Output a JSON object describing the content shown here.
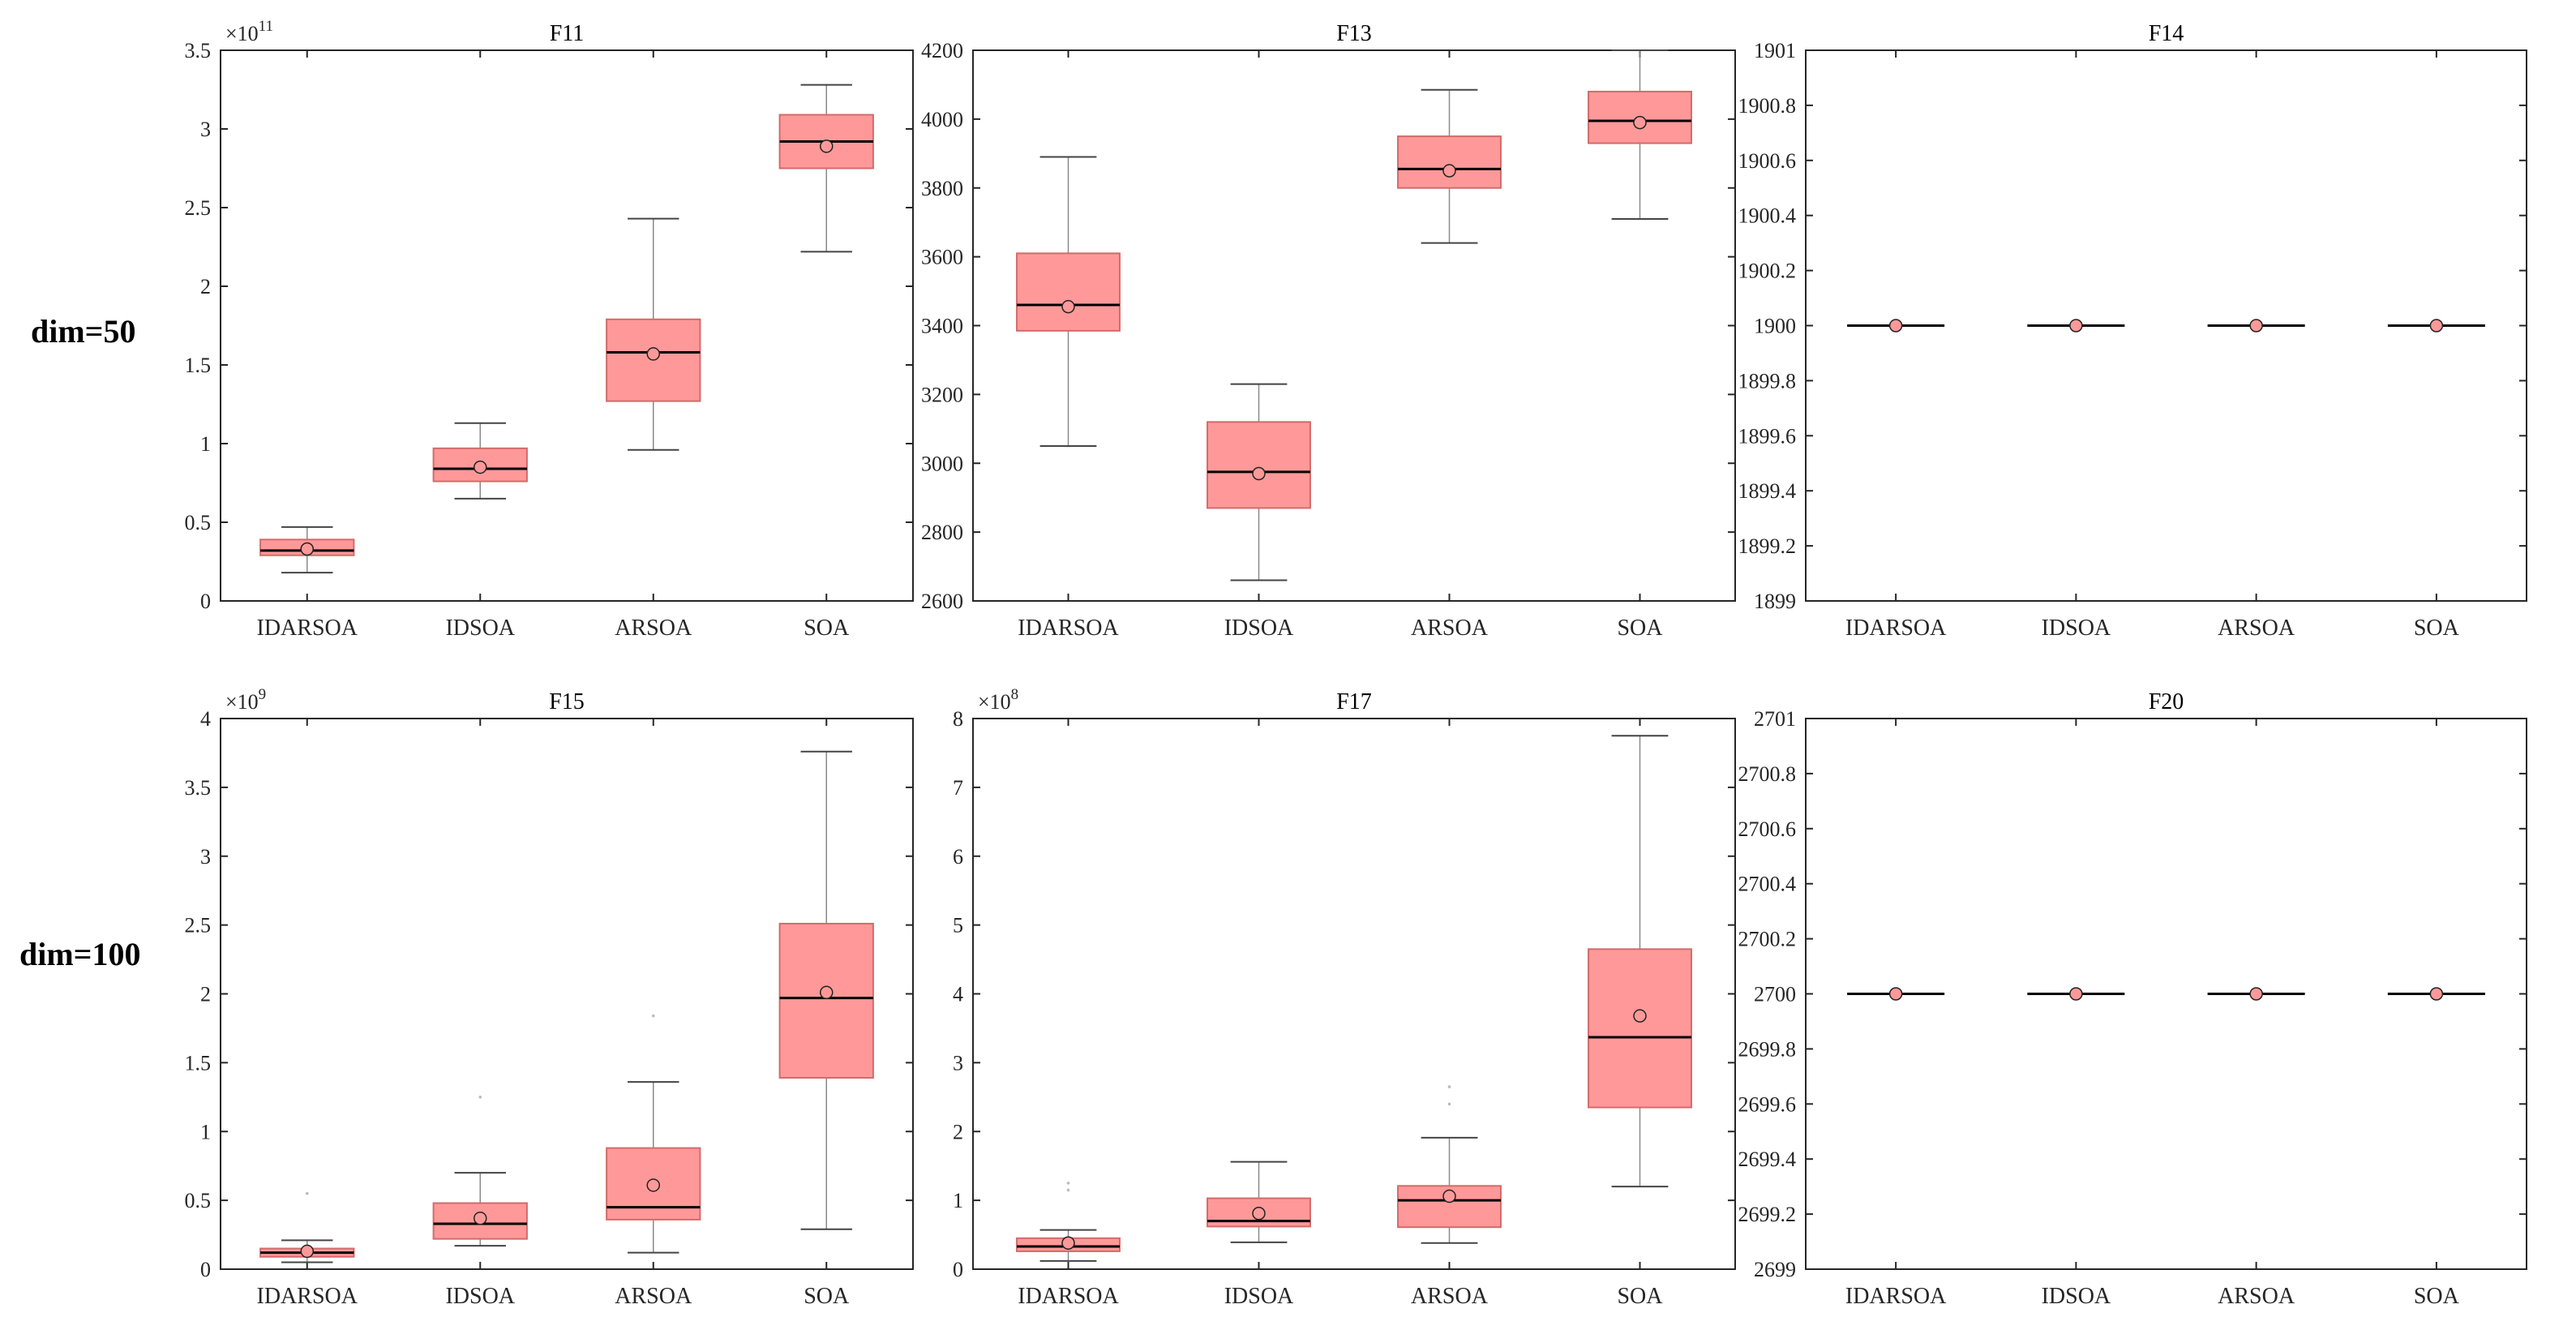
{
  "row_labels": [
    "dim=50",
    "dim=100"
  ],
  "style": {
    "box_fill": "#ff9999",
    "box_edge": "#d46a6a",
    "median": "#000000",
    "mean_marker": "#ff9999",
    "axis": "#262626"
  },
  "chart_data": [
    {
      "type": "box",
      "title": "F11",
      "categories": [
        "IDARSOA",
        "IDSOA",
        "ARSOA",
        "SOA"
      ],
      "ylim": [
        0,
        3.5
      ],
      "yticks": [
        0,
        0.5,
        1,
        1.5,
        2,
        2.5,
        3,
        3.5
      ],
      "ytick_labels": [
        "0",
        "0.5",
        "1",
        "1.5",
        "2",
        "2.5",
        "3",
        "3.5"
      ],
      "exponent": "11",
      "boxes": [
        {
          "min": 0.18,
          "q1": 0.29,
          "median": 0.32,
          "q3": 0.39,
          "max": 0.47,
          "mean": 0.33,
          "outliers": []
        },
        {
          "min": 0.65,
          "q1": 0.76,
          "median": 0.84,
          "q3": 0.97,
          "max": 1.13,
          "mean": 0.85,
          "outliers": []
        },
        {
          "min": 0.96,
          "q1": 1.27,
          "median": 1.58,
          "q3": 1.79,
          "max": 2.43,
          "mean": 1.57,
          "outliers": []
        },
        {
          "min": 2.22,
          "q1": 2.75,
          "median": 2.92,
          "q3": 3.09,
          "max": 3.28,
          "mean": 2.89,
          "outliers": []
        }
      ]
    },
    {
      "type": "box",
      "title": "F13",
      "categories": [
        "IDARSOA",
        "IDSOA",
        "ARSOA",
        "SOA"
      ],
      "ylim": [
        2600,
        4200
      ],
      "yticks": [
        2600,
        2800,
        3000,
        3200,
        3400,
        3600,
        3800,
        4000,
        4200
      ],
      "ytick_labels": [
        "2600",
        "2800",
        "3000",
        "3200",
        "3400",
        "3600",
        "3800",
        "4000",
        "4200"
      ],
      "exponent": "",
      "boxes": [
        {
          "min": 3050,
          "q1": 3385,
          "median": 3460,
          "q3": 3610,
          "max": 3890,
          "mean": 3455,
          "outliers": []
        },
        {
          "min": 2660,
          "q1": 2870,
          "median": 2975,
          "q3": 3120,
          "max": 3230,
          "mean": 2970,
          "outliers": []
        },
        {
          "min": 3640,
          "q1": 3800,
          "median": 3855,
          "q3": 3950,
          "max": 4085,
          "mean": 3850,
          "outliers": []
        },
        {
          "min": 3710,
          "q1": 3930,
          "median": 3995,
          "q3": 4080,
          "max": 4200,
          "mean": 3990,
          "outliers": []
        }
      ]
    },
    {
      "type": "box",
      "title": "F14",
      "categories": [
        "IDARSOA",
        "IDSOA",
        "ARSOA",
        "SOA"
      ],
      "ylim": [
        1899,
        1901
      ],
      "yticks": [
        1899,
        1899.2,
        1899.4,
        1899.6,
        1899.8,
        1900,
        1900.2,
        1900.4,
        1900.6,
        1900.8,
        1901
      ],
      "ytick_labels": [
        "1899",
        "1899.2",
        "1899.4",
        "1899.6",
        "1899.8",
        "1900",
        "1900.2",
        "1900.4",
        "1900.6",
        "1900.8",
        "1901"
      ],
      "exponent": "",
      "boxes": [
        {
          "min": 1900,
          "q1": 1900,
          "median": 1900,
          "q3": 1900,
          "max": 1900,
          "mean": 1900,
          "outliers": []
        },
        {
          "min": 1900,
          "q1": 1900,
          "median": 1900,
          "q3": 1900,
          "max": 1900,
          "mean": 1900,
          "outliers": []
        },
        {
          "min": 1900,
          "q1": 1900,
          "median": 1900,
          "q3": 1900,
          "max": 1900,
          "mean": 1900,
          "outliers": []
        },
        {
          "min": 1900,
          "q1": 1900,
          "median": 1900,
          "q3": 1900,
          "max": 1900,
          "mean": 1900,
          "outliers": []
        }
      ]
    },
    {
      "type": "box",
      "title": "F15",
      "categories": [
        "IDARSOA",
        "IDSOA",
        "ARSOA",
        "SOA"
      ],
      "ylim": [
        0,
        4
      ],
      "yticks": [
        0,
        0.5,
        1,
        1.5,
        2,
        2.5,
        3,
        3.5,
        4
      ],
      "ytick_labels": [
        "0",
        "0.5",
        "1",
        "1.5",
        "2",
        "2.5",
        "3",
        "3.5",
        "4"
      ],
      "exponent": "9",
      "boxes": [
        {
          "min": 0.05,
          "q1": 0.09,
          "median": 0.12,
          "q3": 0.15,
          "max": 0.21,
          "mean": 0.13,
          "outliers": [
            0.55
          ]
        },
        {
          "min": 0.17,
          "q1": 0.22,
          "median": 0.33,
          "q3": 0.48,
          "max": 0.7,
          "mean": 0.37,
          "outliers": [
            1.25
          ]
        },
        {
          "min": 0.12,
          "q1": 0.36,
          "median": 0.45,
          "q3": 0.88,
          "max": 1.36,
          "mean": 0.61,
          "outliers": [
            1.84
          ]
        },
        {
          "min": 0.29,
          "q1": 1.39,
          "median": 1.97,
          "q3": 2.51,
          "max": 3.76,
          "mean": 2.01,
          "outliers": []
        }
      ]
    },
    {
      "type": "box",
      "title": "F17",
      "categories": [
        "IDARSOA",
        "IDSOA",
        "ARSOA",
        "SOA"
      ],
      "ylim": [
        0,
        8
      ],
      "yticks": [
        0,
        1,
        2,
        3,
        4,
        5,
        6,
        7,
        8
      ],
      "ytick_labels": [
        "0",
        "1",
        "2",
        "3",
        "4",
        "5",
        "6",
        "7",
        "8"
      ],
      "exponent": "8",
      "boxes": [
        {
          "min": 0.12,
          "q1": 0.26,
          "median": 0.33,
          "q3": 0.45,
          "max": 0.57,
          "mean": 0.38,
          "outliers": [
            1.15,
            1.25
          ]
        },
        {
          "min": 0.39,
          "q1": 0.62,
          "median": 0.7,
          "q3": 1.03,
          "max": 1.56,
          "mean": 0.81,
          "outliers": []
        },
        {
          "min": 0.38,
          "q1": 0.61,
          "median": 1.0,
          "q3": 1.21,
          "max": 1.91,
          "mean": 1.06,
          "outliers": [
            2.4,
            2.65
          ]
        },
        {
          "min": 1.2,
          "q1": 2.35,
          "median": 3.37,
          "q3": 4.65,
          "max": 7.75,
          "mean": 3.68,
          "outliers": []
        }
      ]
    },
    {
      "type": "box",
      "title": "F20",
      "categories": [
        "IDARSOA",
        "IDSOA",
        "ARSOA",
        "SOA"
      ],
      "ylim": [
        2699,
        2701
      ],
      "yticks": [
        2699,
        2699.2,
        2699.4,
        2699.6,
        2699.8,
        2700,
        2700.2,
        2700.4,
        2700.6,
        2700.8,
        2701
      ],
      "ytick_labels": [
        "2699",
        "2699.2",
        "2699.4",
        "2699.6",
        "2699.8",
        "2700",
        "2700.2",
        "2700.4",
        "2700.6",
        "2700.8",
        "2701"
      ],
      "exponent": "",
      "boxes": [
        {
          "min": 2700,
          "q1": 2700,
          "median": 2700,
          "q3": 2700,
          "max": 2700,
          "mean": 2700,
          "outliers": []
        },
        {
          "min": 2700,
          "q1": 2700,
          "median": 2700,
          "q3": 2700,
          "max": 2700,
          "mean": 2700,
          "outliers": []
        },
        {
          "min": 2700,
          "q1": 2700,
          "median": 2700,
          "q3": 2700,
          "max": 2700,
          "mean": 2700,
          "outliers": []
        },
        {
          "min": 2700,
          "q1": 2700,
          "median": 2700,
          "q3": 2700,
          "max": 2700,
          "mean": 2700,
          "outliers": []
        }
      ]
    }
  ]
}
